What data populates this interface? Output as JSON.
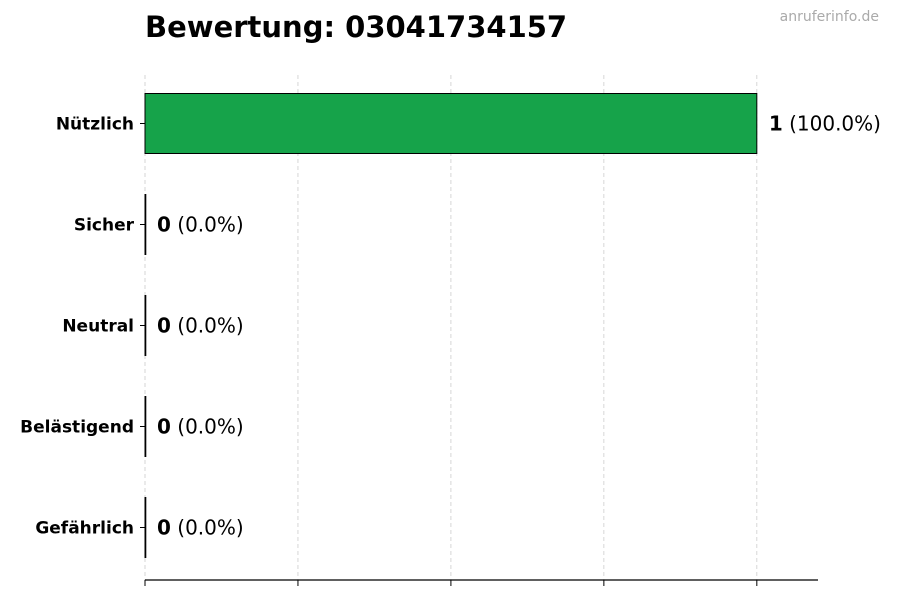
{
  "watermark": "anruferinfo.de",
  "chart_data": {
    "type": "bar",
    "orientation": "horizontal",
    "title": "Bewertung: 03041734157",
    "categories": [
      "Nützlich",
      "Sicher",
      "Neutral",
      "Belästigend",
      "Gefährlich"
    ],
    "values": [
      1,
      0,
      0,
      0,
      0
    ],
    "data_labels": [
      {
        "count": "1",
        "percent": "(100.0%)"
      },
      {
        "count": "0",
        "percent": "(0.0%)"
      },
      {
        "count": "0",
        "percent": "(0.0%)"
      },
      {
        "count": "0",
        "percent": "(0.0%)"
      },
      {
        "count": "0",
        "percent": "(0.0%)"
      }
    ],
    "colors": [
      "#16a34a",
      "#16a34a",
      "#16a34a",
      "#16a34a",
      "#16a34a"
    ],
    "xlim": [
      0,
      1.1
    ],
    "xticks": [
      0,
      0.25,
      0.5,
      0.75,
      1.0
    ],
    "xtick_labels_shown": false,
    "grid": "x-dashed",
    "xlabel": "",
    "ylabel": ""
  }
}
